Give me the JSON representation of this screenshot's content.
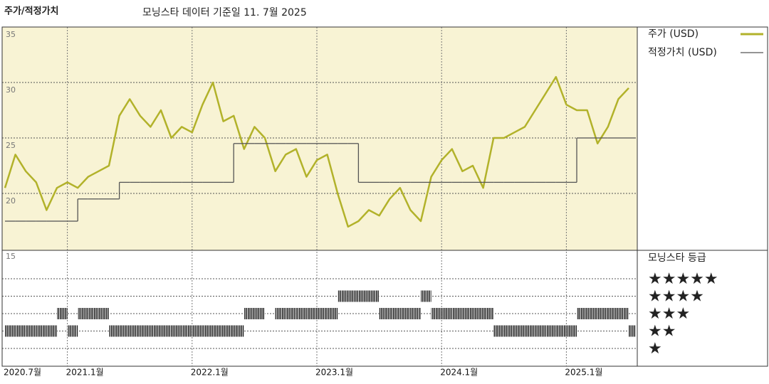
{
  "chart_data": {
    "type": "line",
    "title": "주가/적정가치",
    "subtitle": "모닝스타 데이터 기준일 11. 7월 2025",
    "x": [
      "2020-07",
      "2020-08",
      "2020-09",
      "2020-10",
      "2020-11",
      "2020-12",
      "2021-01",
      "2021-02",
      "2021-03",
      "2021-04",
      "2021-05",
      "2021-06",
      "2021-07",
      "2021-08",
      "2021-09",
      "2021-10",
      "2021-11",
      "2021-12",
      "2022-01",
      "2022-02",
      "2022-03",
      "2022-04",
      "2022-05",
      "2022-06",
      "2022-07",
      "2022-08",
      "2022-09",
      "2022-10",
      "2022-11",
      "2022-12",
      "2023-01",
      "2023-02",
      "2023-03",
      "2023-04",
      "2023-05",
      "2023-06",
      "2023-07",
      "2023-08",
      "2023-09",
      "2023-10",
      "2023-11",
      "2023-12",
      "2024-01",
      "2024-02",
      "2024-03",
      "2024-04",
      "2024-05",
      "2024-06",
      "2024-07",
      "2024-08",
      "2024-09",
      "2024-10",
      "2024-11",
      "2024-12",
      "2025-01",
      "2025-02",
      "2025-03",
      "2025-04",
      "2025-05",
      "2025-06",
      "2025-07"
    ],
    "series": [
      {
        "name": "주가 (USD)",
        "color": "#b2b22a",
        "values": [
          20.5,
          23.5,
          22,
          21,
          18.5,
          20.5,
          21,
          20.5,
          21.5,
          22,
          22.5,
          27,
          28.5,
          27,
          26,
          27.5,
          25,
          26,
          25.5,
          28,
          30,
          26.5,
          27,
          24,
          26,
          25,
          22,
          23.5,
          24,
          21.5,
          23,
          23.5,
          20,
          17,
          17.5,
          18.5,
          18,
          19.5,
          20.5,
          18.5,
          17.5,
          21.5,
          23,
          24,
          22,
          22.5,
          20.5,
          25,
          25,
          25.5,
          26,
          27.5,
          29,
          30.5,
          28,
          27.5,
          27.5,
          24.5,
          26,
          28.5,
          29.5
        ]
      },
      {
        "name": "적정가치 (USD)",
        "color": "#555555",
        "step": true,
        "values": [
          17.5,
          17.5,
          17.5,
          17.5,
          17.5,
          17.5,
          17.5,
          19.5,
          19.5,
          19.5,
          19.5,
          21,
          21,
          21,
          21,
          21,
          21,
          21,
          21,
          21,
          21,
          21,
          24.5,
          24.5,
          24.5,
          24.5,
          24.5,
          24.5,
          24.5,
          24.5,
          24.5,
          24.5,
          24.5,
          24.5,
          21,
          21,
          21,
          21,
          21,
          21,
          21,
          21,
          21,
          21,
          21,
          21,
          21,
          21,
          21,
          21,
          21,
          21,
          21,
          21,
          21,
          25,
          25,
          25,
          25,
          25,
          25
        ]
      }
    ],
    "ylim": [
      15,
      35
    ],
    "yticks": [
      15,
      20,
      25,
      30,
      35
    ],
    "grid": true,
    "background": "#f8f3d4",
    "xticks": [
      {
        "value": "2020-07",
        "label": "2020.7월"
      },
      {
        "value": "2021-01",
        "label": "2021.1월"
      },
      {
        "value": "2022-01",
        "label": "2022.1월"
      },
      {
        "value": "2023-01",
        "label": "2023.1월"
      },
      {
        "value": "2024-01",
        "label": "2024.1월"
      },
      {
        "value": "2025-01",
        "label": "2025.1월"
      }
    ],
    "rating": {
      "title": "모닝스타 등급",
      "color": "#111111",
      "values": [
        2,
        2,
        2,
        2,
        2,
        3,
        2,
        3,
        3,
        3,
        2,
        2,
        2,
        2,
        2,
        2,
        2,
        2,
        2,
        2,
        2,
        2,
        2,
        3,
        3,
        null,
        3,
        3,
        3,
        3,
        3,
        3,
        4,
        4,
        4,
        4,
        3,
        3,
        3,
        3,
        4,
        3,
        3,
        3,
        3,
        3,
        3,
        2,
        2,
        2,
        2,
        2,
        2,
        2,
        2,
        3,
        3,
        3,
        3,
        3,
        2
      ],
      "levels": [
        {
          "value": 5,
          "label": "★★★★★"
        },
        {
          "value": 4,
          "label": "★★★★"
        },
        {
          "value": 3,
          "label": "★★★"
        },
        {
          "value": 2,
          "label": "★★"
        },
        {
          "value": 1,
          "label": "★"
        }
      ]
    }
  }
}
